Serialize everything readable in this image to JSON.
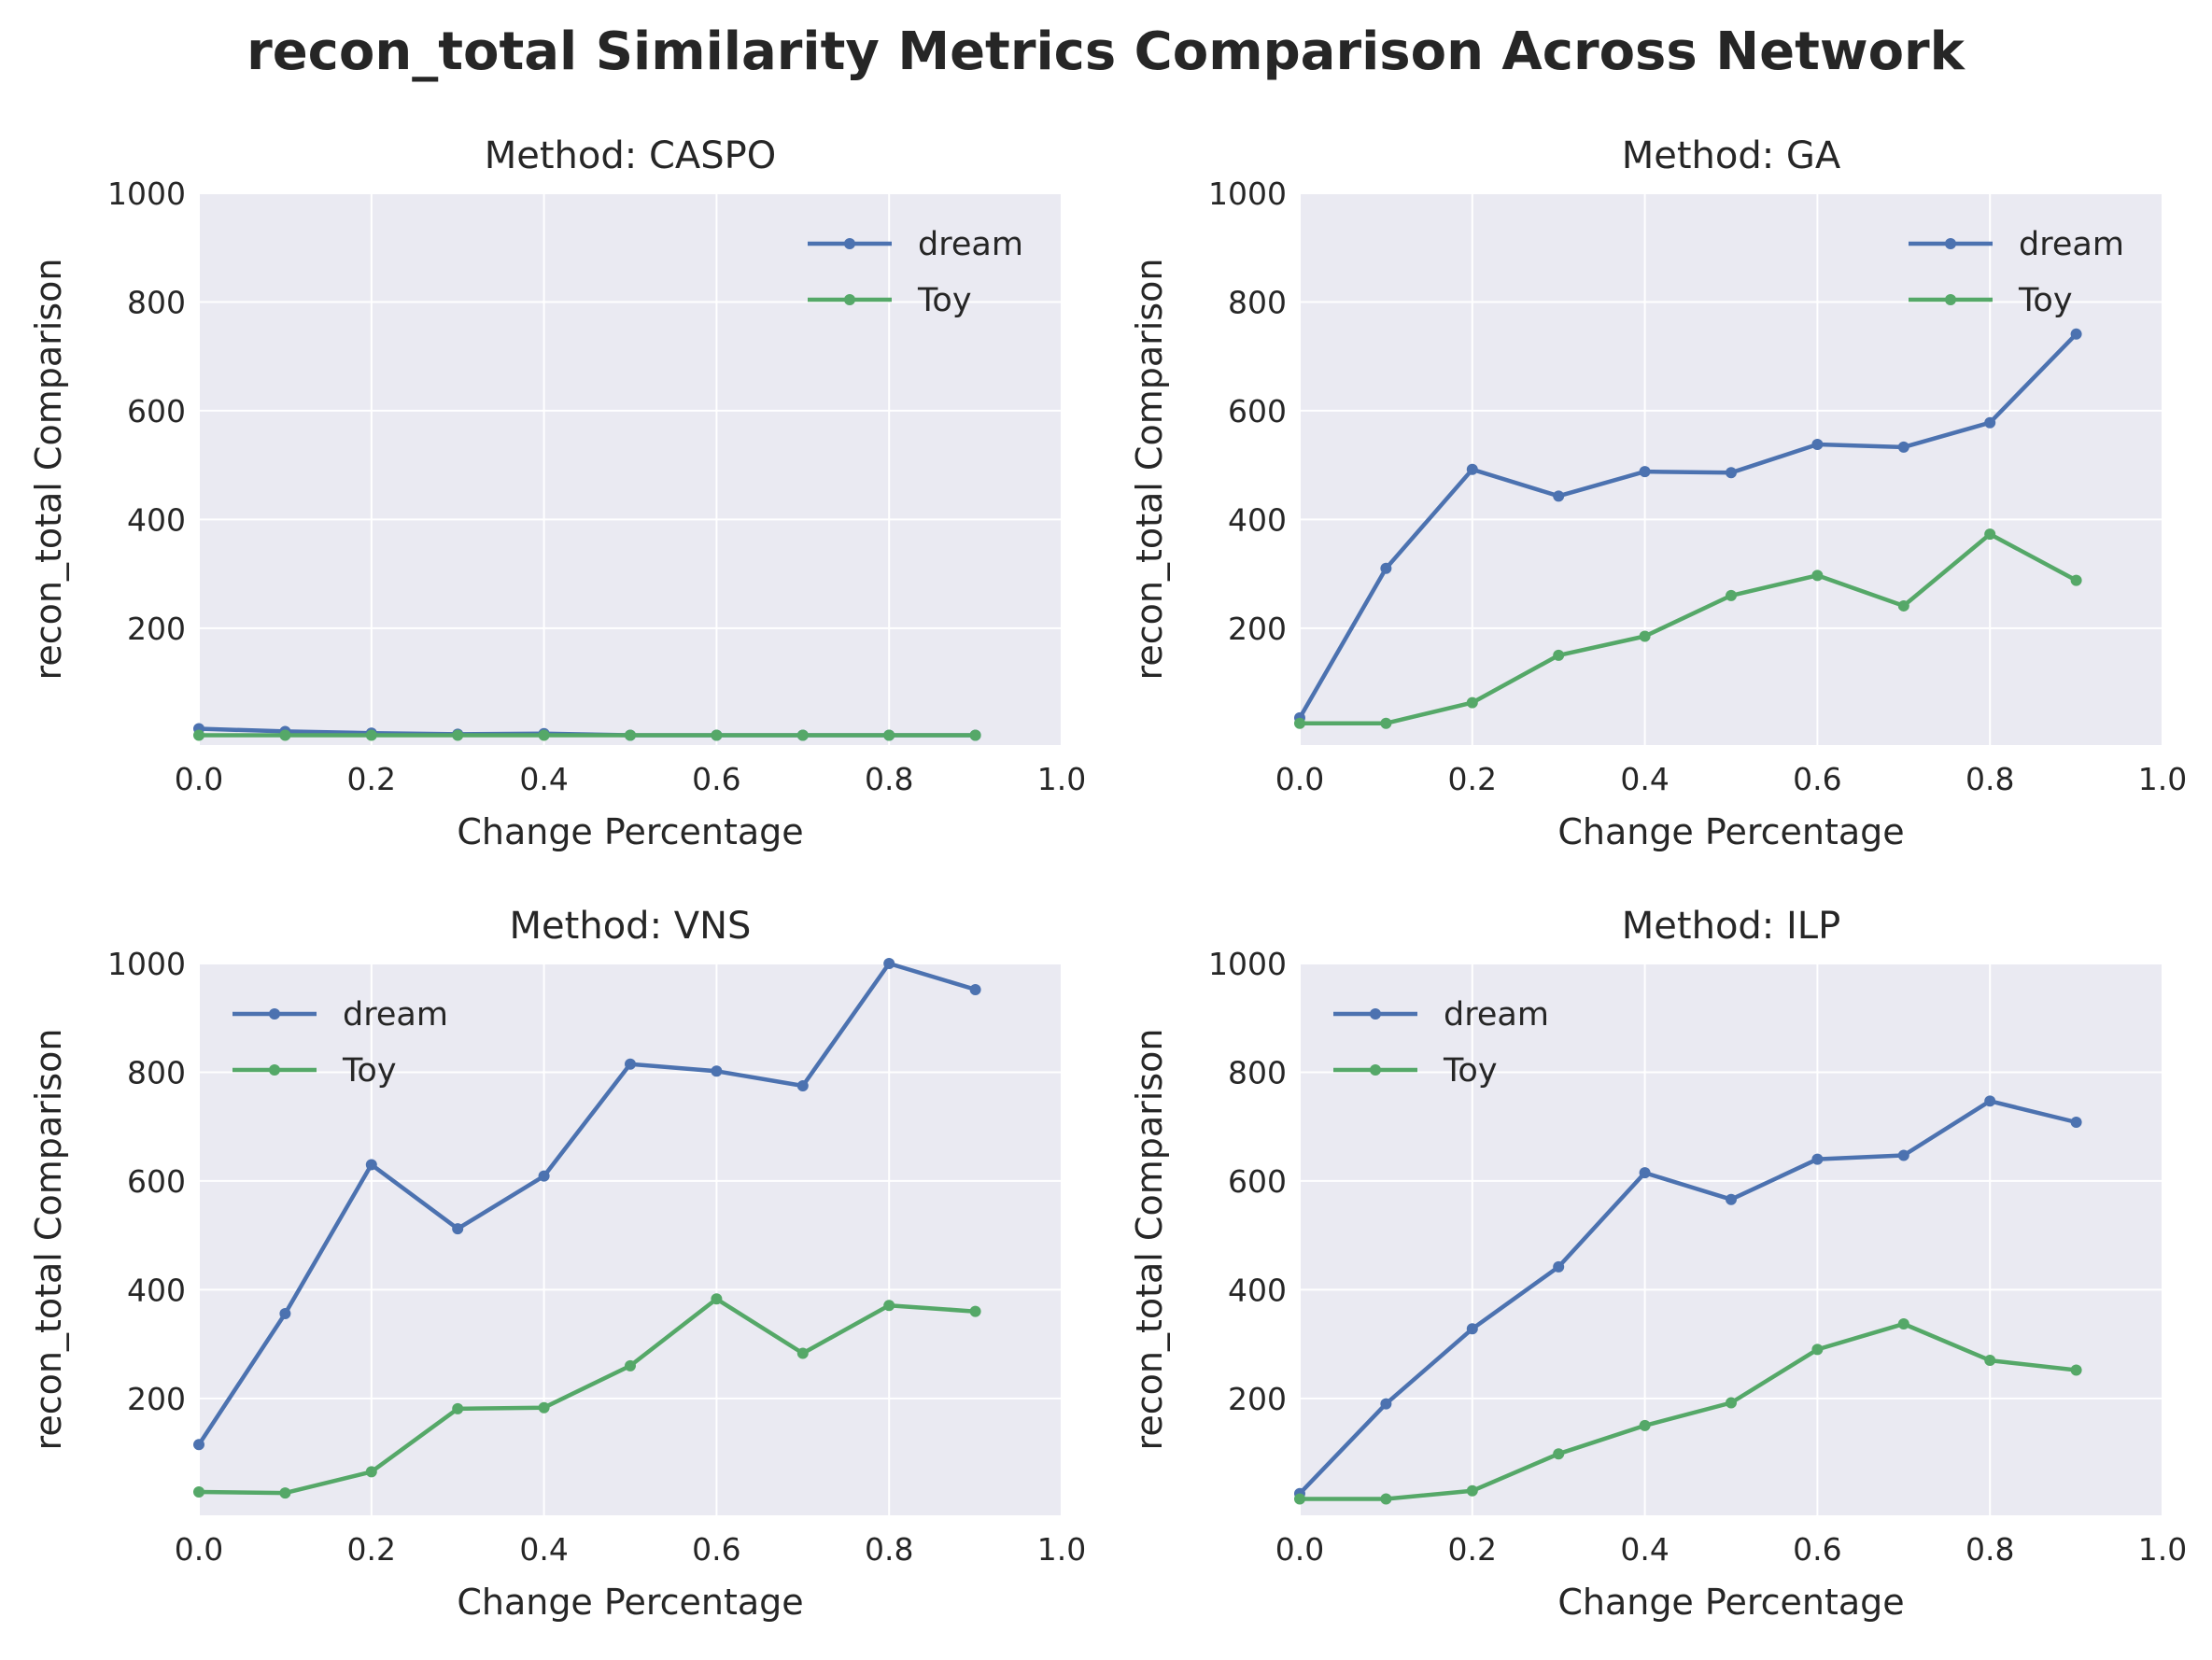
{
  "figure": {
    "title": "recon_total Similarity Metrics Comparison Across Network"
  },
  "colors": {
    "dream": "#4c72b0",
    "Toy": "#55a868",
    "axes_bg": "#eaeaf2",
    "grid": "#ffffff",
    "text": "#262626"
  },
  "chart_data": [
    {
      "type": "line",
      "title": "Method: CASPO",
      "xlabel": "Change Percentage",
      "ylabel": "recon_total Comparison",
      "xlim": [
        0,
        1
      ],
      "ylim": [
        0,
        1000
      ],
      "xticks": [
        "0.0",
        "0.2",
        "0.4",
        "0.6",
        "0.8",
        "1.0"
      ],
      "yticks": [
        "200",
        "400",
        "600",
        "800",
        "1000"
      ],
      "legend_position": "top-right",
      "grid": true,
      "x": [
        0.0,
        0.1,
        0.2,
        0.3,
        0.4,
        0.5,
        0.6,
        0.7,
        0.8,
        0.9
      ],
      "series": [
        {
          "name": "dream",
          "values": [
            15,
            10,
            7,
            5,
            6,
            3,
            3,
            3,
            3,
            3
          ]
        },
        {
          "name": "Toy",
          "values": [
            3,
            3,
            3,
            3,
            3,
            3,
            3,
            3,
            3,
            3
          ]
        }
      ]
    },
    {
      "type": "line",
      "title": "Method: GA",
      "xlabel": "Change Percentage",
      "ylabel": "recon_total Comparison",
      "xlim": [
        0,
        1
      ],
      "ylim": [
        0,
        1000
      ],
      "xticks": [
        "0.0",
        "0.2",
        "0.4",
        "0.6",
        "0.8",
        "1.0"
      ],
      "yticks": [
        "200",
        "400",
        "600",
        "800",
        "1000"
      ],
      "legend_position": "top-right",
      "grid": true,
      "x": [
        0.0,
        0.1,
        0.2,
        0.3,
        0.4,
        0.5,
        0.6,
        0.7,
        0.8,
        0.9
      ],
      "series": [
        {
          "name": "dream",
          "values": [
            35,
            310,
            492,
            443,
            488,
            486,
            538,
            533,
            578,
            741
          ]
        },
        {
          "name": "Toy",
          "values": [
            25,
            25,
            63,
            150,
            185,
            260,
            297,
            241,
            373,
            288
          ]
        }
      ]
    },
    {
      "type": "line",
      "title": "Method: VNS",
      "xlabel": "Change Percentage",
      "ylabel": "recon_total Comparison",
      "xlim": [
        0,
        1
      ],
      "ylim": [
        0,
        1000
      ],
      "xticks": [
        "0.0",
        "0.2",
        "0.4",
        "0.6",
        "0.8",
        "1.0"
      ],
      "yticks": [
        "200",
        "400",
        "600",
        "800",
        "1000"
      ],
      "legend_position": "top-left",
      "grid": true,
      "x": [
        0.0,
        0.1,
        0.2,
        0.3,
        0.4,
        0.5,
        0.6,
        0.7,
        0.8,
        0.9
      ],
      "series": [
        {
          "name": "dream",
          "values": [
            115,
            356,
            630,
            512,
            609,
            815,
            802,
            775,
            1000,
            952
          ]
        },
        {
          "name": "Toy",
          "values": [
            28,
            26,
            65,
            181,
            183,
            260,
            383,
            283,
            371,
            360
          ]
        }
      ]
    },
    {
      "type": "line",
      "title": "Method: ILP",
      "xlabel": "Change Percentage",
      "ylabel": "recon_total Comparison",
      "xlim": [
        0,
        1
      ],
      "ylim": [
        0,
        1000
      ],
      "xticks": [
        "0.0",
        "0.2",
        "0.4",
        "0.6",
        "0.8",
        "1.0"
      ],
      "yticks": [
        "200",
        "400",
        "600",
        "800",
        "1000"
      ],
      "legend_position": "top-left",
      "grid": true,
      "x": [
        0.0,
        0.1,
        0.2,
        0.3,
        0.4,
        0.5,
        0.6,
        0.7,
        0.8,
        0.9
      ],
      "series": [
        {
          "name": "dream",
          "values": [
            25,
            190,
            328,
            442,
            615,
            566,
            640,
            647,
            747,
            708
          ]
        },
        {
          "name": "Toy",
          "values": [
            15,
            15,
            30,
            98,
            150,
            192,
            290,
            337,
            270,
            252
          ]
        }
      ]
    }
  ]
}
